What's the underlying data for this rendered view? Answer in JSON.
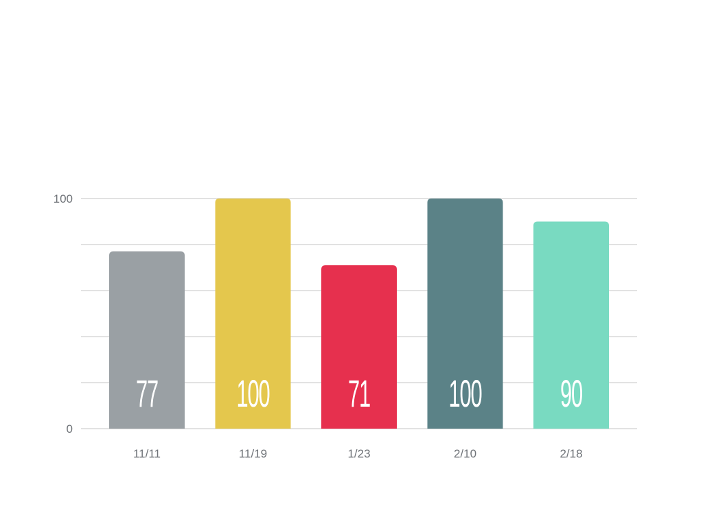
{
  "chart_data": {
    "type": "bar",
    "categories": [
      "11/11",
      "11/19",
      "1/23",
      "2/10",
      "2/18"
    ],
    "values": [
      77,
      100,
      71,
      100,
      90
    ],
    "data_labels": [
      "77",
      "100",
      "71",
      "100",
      "90"
    ],
    "bar_colors": [
      "#9aa0a4",
      "#e4c74d",
      "#e6304e",
      "#5b8287",
      "#79dac1"
    ],
    "ylim": [
      0,
      100
    ],
    "y_tick_labels": [
      "0",
      "100"
    ],
    "gridlines": true,
    "gridline_values": [
      0,
      20,
      40,
      60,
      80,
      100
    ],
    "legend": "none",
    "title": "",
    "xlabel": "",
    "ylabel": ""
  }
}
